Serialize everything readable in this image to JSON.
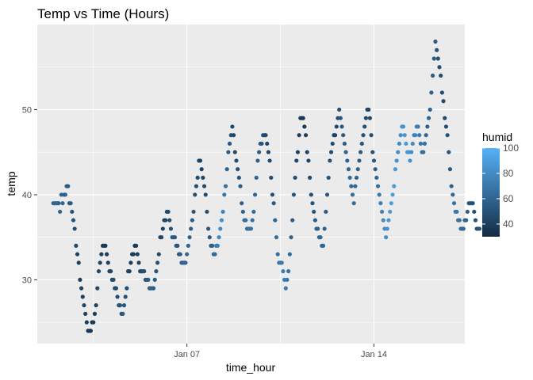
{
  "chart_data": {
    "type": "scatter",
    "title": "Temp vs Time (Hours)",
    "xlabel": "time_hour",
    "ylabel": "temp",
    "x_unit": "days since Jan 01",
    "xlim": [
      0.4,
      16.4
    ],
    "ylim": [
      22.5,
      60
    ],
    "x_ticks": [
      {
        "value": 6,
        "label": "Jan 07"
      },
      {
        "value": 13,
        "label": "Jan 14"
      }
    ],
    "x_minor_ticks": [
      2.5,
      9.5,
      16.5
    ],
    "y_ticks": [
      {
        "value": 30,
        "label": "30"
      },
      {
        "value": 40,
        "label": "40"
      },
      {
        "value": 50,
        "label": "50"
      }
    ],
    "y_minor_ticks": [
      25,
      35,
      45,
      55
    ],
    "grid": true,
    "panel_background": "#ebebeb",
    "grid_color": "#ffffff",
    "legend": {
      "title": "humid",
      "position": "right",
      "range": [
        30,
        100
      ],
      "ticks": [
        {
          "value": 40,
          "label": "40"
        },
        {
          "value": 60,
          "label": "60"
        },
        {
          "value": 80,
          "label": "80"
        },
        {
          "value": 100,
          "label": "100"
        }
      ],
      "low_color": "#132b43",
      "high_color": "#56b1f7"
    },
    "points": [
      [
        1.0,
        39,
        60
      ],
      [
        1.05,
        39,
        60
      ],
      [
        1.1,
        39,
        62
      ],
      [
        1.15,
        39,
        62
      ],
      [
        1.2,
        39,
        60
      ],
      [
        1.25,
        38,
        60
      ],
      [
        1.3,
        40,
        60
      ],
      [
        1.35,
        39,
        62
      ],
      [
        1.4,
        40,
        60
      ],
      [
        1.45,
        40,
        58
      ],
      [
        1.5,
        41,
        55
      ],
      [
        1.55,
        41,
        55
      ],
      [
        1.6,
        39,
        55
      ],
      [
        1.65,
        39,
        55
      ],
      [
        1.7,
        38,
        52
      ],
      [
        1.75,
        37,
        50
      ],
      [
        1.8,
        36,
        48
      ],
      [
        1.85,
        34,
        45
      ],
      [
        1.9,
        33,
        42
      ],
      [
        1.95,
        32,
        40
      ],
      [
        2.0,
        30,
        40
      ],
      [
        2.05,
        29,
        42
      ],
      [
        2.1,
        28,
        42
      ],
      [
        2.15,
        27,
        45
      ],
      [
        2.2,
        26,
        42
      ],
      [
        2.25,
        25,
        40
      ],
      [
        2.3,
        24,
        38
      ],
      [
        2.35,
        24,
        38
      ],
      [
        2.4,
        24,
        36
      ],
      [
        2.45,
        25,
        38
      ],
      [
        2.5,
        25,
        38
      ],
      [
        2.55,
        26,
        40
      ],
      [
        2.6,
        27,
        42
      ],
      [
        2.65,
        29,
        45
      ],
      [
        2.7,
        31,
        45
      ],
      [
        2.75,
        32,
        42
      ],
      [
        2.8,
        33,
        40
      ],
      [
        2.85,
        34,
        38
      ],
      [
        2.9,
        34,
        38
      ],
      [
        2.95,
        34,
        36
      ],
      [
        3.0,
        33,
        38
      ],
      [
        3.05,
        32,
        40
      ],
      [
        3.1,
        31,
        42
      ],
      [
        3.15,
        31,
        44
      ],
      [
        3.2,
        30,
        46
      ],
      [
        3.25,
        30,
        48
      ],
      [
        3.3,
        29,
        48
      ],
      [
        3.35,
        29,
        46
      ],
      [
        3.4,
        28,
        48
      ],
      [
        3.45,
        27,
        50
      ],
      [
        3.5,
        27,
        52
      ],
      [
        3.55,
        26,
        52
      ],
      [
        3.6,
        26,
        54
      ],
      [
        3.65,
        27,
        52
      ],
      [
        3.7,
        28,
        50
      ],
      [
        3.75,
        29,
        48
      ],
      [
        3.8,
        31,
        45
      ],
      [
        3.85,
        31,
        42
      ],
      [
        3.9,
        32,
        40
      ],
      [
        3.95,
        33,
        38
      ],
      [
        4.0,
        33,
        38
      ],
      [
        4.05,
        34,
        36
      ],
      [
        4.1,
        34,
        38
      ],
      [
        4.15,
        33,
        40
      ],
      [
        4.2,
        32,
        42
      ],
      [
        4.25,
        31,
        44
      ],
      [
        4.3,
        31,
        46
      ],
      [
        4.35,
        31,
        48
      ],
      [
        4.4,
        31,
        50
      ],
      [
        4.45,
        30,
        52
      ],
      [
        4.5,
        30,
        54
      ],
      [
        4.55,
        30,
        56
      ],
      [
        4.6,
        29,
        56
      ],
      [
        4.65,
        29,
        58
      ],
      [
        4.7,
        29,
        58
      ],
      [
        4.75,
        29,
        56
      ],
      [
        4.8,
        30,
        54
      ],
      [
        4.85,
        31,
        52
      ],
      [
        4.9,
        32,
        50
      ],
      [
        4.95,
        33,
        48
      ],
      [
        5.0,
        35,
        46
      ],
      [
        5.05,
        35,
        44
      ],
      [
        5.1,
        36,
        42
      ],
      [
        5.15,
        37,
        42
      ],
      [
        5.2,
        37,
        42
      ],
      [
        5.25,
        38,
        44
      ],
      [
        5.3,
        38,
        46
      ],
      [
        5.35,
        37,
        48
      ],
      [
        5.4,
        36,
        50
      ],
      [
        5.45,
        35,
        52
      ],
      [
        5.5,
        35,
        54
      ],
      [
        5.55,
        35,
        54
      ],
      [
        5.6,
        34,
        54
      ],
      [
        5.65,
        34,
        54
      ],
      [
        5.7,
        33,
        56
      ],
      [
        5.75,
        33,
        56
      ],
      [
        5.8,
        32,
        58
      ],
      [
        5.85,
        32,
        58
      ],
      [
        5.9,
        32,
        60
      ],
      [
        5.95,
        32,
        60
      ],
      [
        6.0,
        33,
        62
      ],
      [
        6.05,
        34,
        60
      ],
      [
        6.1,
        35,
        58
      ],
      [
        6.15,
        36,
        56
      ],
      [
        6.2,
        37,
        54
      ],
      [
        6.25,
        38,
        52
      ],
      [
        6.3,
        40,
        50
      ],
      [
        6.35,
        41,
        48
      ],
      [
        6.4,
        42,
        46
      ],
      [
        6.45,
        44,
        44
      ],
      [
        6.5,
        44,
        42
      ],
      [
        6.55,
        43,
        42
      ],
      [
        6.6,
        42,
        44
      ],
      [
        6.65,
        41,
        46
      ],
      [
        6.7,
        40,
        48
      ],
      [
        6.75,
        38,
        50
      ],
      [
        6.8,
        36,
        52
      ],
      [
        6.85,
        35,
        54
      ],
      [
        6.9,
        34,
        56
      ],
      [
        6.95,
        34,
        58
      ],
      [
        7.0,
        33,
        60
      ],
      [
        7.05,
        33,
        64
      ],
      [
        7.1,
        34,
        70
      ],
      [
        7.15,
        34,
        74
      ],
      [
        7.2,
        35,
        78
      ],
      [
        7.25,
        36,
        80
      ],
      [
        7.3,
        37,
        82
      ],
      [
        7.35,
        38,
        76
      ],
      [
        7.4,
        40,
        70
      ],
      [
        7.45,
        41,
        66
      ],
      [
        7.5,
        43,
        60
      ],
      [
        7.55,
        45,
        56
      ],
      [
        7.6,
        46,
        52
      ],
      [
        7.65,
        47,
        48
      ],
      [
        7.7,
        48,
        45
      ],
      [
        7.75,
        47,
        44
      ],
      [
        7.8,
        45,
        46
      ],
      [
        7.85,
        44,
        48
      ],
      [
        7.9,
        43,
        50
      ],
      [
        7.95,
        42,
        52
      ],
      [
        8.0,
        41,
        56
      ],
      [
        8.05,
        39,
        58
      ],
      [
        8.1,
        38,
        60
      ],
      [
        8.15,
        37,
        62
      ],
      [
        8.2,
        37,
        64
      ],
      [
        8.25,
        36,
        64
      ],
      [
        8.3,
        36,
        66
      ],
      [
        8.35,
        36,
        66
      ],
      [
        8.4,
        36,
        68
      ],
      [
        8.45,
        37,
        66
      ],
      [
        8.5,
        38,
        64
      ],
      [
        8.55,
        40,
        62
      ],
      [
        8.6,
        42,
        60
      ],
      [
        8.65,
        44,
        58
      ],
      [
        8.7,
        45,
        56
      ],
      [
        8.75,
        46,
        54
      ],
      [
        8.8,
        46,
        52
      ],
      [
        8.85,
        47,
        50
      ],
      [
        8.9,
        47,
        48
      ],
      [
        8.95,
        47,
        46
      ],
      [
        9.0,
        46,
        44
      ],
      [
        9.05,
        45,
        44
      ],
      [
        9.1,
        44,
        46
      ],
      [
        9.15,
        42,
        48
      ],
      [
        9.2,
        40,
        50
      ],
      [
        9.25,
        39,
        54
      ],
      [
        9.3,
        37,
        60
      ],
      [
        9.35,
        35,
        64
      ],
      [
        9.4,
        33,
        66
      ],
      [
        9.45,
        32,
        68
      ],
      [
        9.5,
        32,
        70
      ],
      [
        9.55,
        32,
        72
      ],
      [
        9.6,
        31,
        74
      ],
      [
        9.65,
        30,
        74
      ],
      [
        9.7,
        29,
        72
      ],
      [
        9.75,
        30,
        70
      ],
      [
        9.8,
        31,
        68
      ],
      [
        9.85,
        33,
        64
      ],
      [
        9.9,
        35,
        60
      ],
      [
        9.95,
        37,
        56
      ],
      [
        10.0,
        40,
        52
      ],
      [
        10.05,
        42,
        48
      ],
      [
        10.1,
        44,
        44
      ],
      [
        10.15,
        45,
        42
      ],
      [
        10.2,
        47,
        40
      ],
      [
        10.25,
        49,
        38
      ],
      [
        10.3,
        49,
        36
      ],
      [
        10.35,
        49,
        36
      ],
      [
        10.4,
        48,
        38
      ],
      [
        10.45,
        47,
        40
      ],
      [
        10.5,
        45,
        42
      ],
      [
        10.55,
        44,
        44
      ],
      [
        10.6,
        42,
        46
      ],
      [
        10.65,
        40,
        48
      ],
      [
        10.7,
        39,
        50
      ],
      [
        10.75,
        38,
        52
      ],
      [
        10.8,
        37,
        54
      ],
      [
        10.85,
        36,
        56
      ],
      [
        10.9,
        36,
        58
      ],
      [
        10.95,
        35,
        60
      ],
      [
        11.0,
        35,
        62
      ],
      [
        11.05,
        34,
        62
      ],
      [
        11.1,
        34,
        60
      ],
      [
        11.15,
        36,
        58
      ],
      [
        11.2,
        38,
        56
      ],
      [
        11.25,
        40,
        54
      ],
      [
        11.3,
        42,
        52
      ],
      [
        11.35,
        44,
        50
      ],
      [
        11.4,
        45,
        48
      ],
      [
        11.45,
        46,
        46
      ],
      [
        11.5,
        47,
        44
      ],
      [
        11.55,
        47,
        44
      ],
      [
        11.6,
        48,
        46
      ],
      [
        11.65,
        49,
        48
      ],
      [
        11.7,
        50,
        50
      ],
      [
        11.75,
        49,
        52
      ],
      [
        11.8,
        48,
        54
      ],
      [
        11.85,
        47,
        56
      ],
      [
        11.9,
        46,
        56
      ],
      [
        11.95,
        45,
        58
      ],
      [
        12.0,
        44,
        60
      ],
      [
        12.05,
        43,
        60
      ],
      [
        12.1,
        42,
        62
      ],
      [
        12.15,
        41,
        62
      ],
      [
        12.2,
        40,
        64
      ],
      [
        12.25,
        39,
        64
      ],
      [
        12.3,
        41,
        62
      ],
      [
        12.35,
        42,
        60
      ],
      [
        12.4,
        43,
        58
      ],
      [
        12.45,
        44,
        56
      ],
      [
        12.5,
        45,
        54
      ],
      [
        12.55,
        46,
        52
      ],
      [
        12.6,
        47,
        50
      ],
      [
        12.65,
        48,
        48
      ],
      [
        12.7,
        49,
        46
      ],
      [
        12.75,
        50,
        44
      ],
      [
        12.8,
        50,
        44
      ],
      [
        12.85,
        49,
        46
      ],
      [
        12.9,
        47,
        48
      ],
      [
        12.95,
        45,
        50
      ],
      [
        13.0,
        44,
        54
      ],
      [
        13.05,
        43,
        58
      ],
      [
        13.1,
        42,
        62
      ],
      [
        13.15,
        41,
        66
      ],
      [
        13.2,
        40,
        70
      ],
      [
        13.25,
        39,
        74
      ],
      [
        13.3,
        38,
        76
      ],
      [
        13.35,
        37,
        78
      ],
      [
        13.4,
        36,
        80
      ],
      [
        13.45,
        35,
        82
      ],
      [
        13.5,
        36,
        84
      ],
      [
        13.55,
        37,
        86
      ],
      [
        13.6,
        38,
        88
      ],
      [
        13.65,
        39,
        90
      ],
      [
        13.7,
        40,
        90
      ],
      [
        13.75,
        41,
        88
      ],
      [
        13.8,
        43,
        86
      ],
      [
        13.85,
        44,
        84
      ],
      [
        13.9,
        45,
        82
      ],
      [
        13.95,
        46,
        80
      ],
      [
        14.0,
        47,
        80
      ],
      [
        14.05,
        48,
        82
      ],
      [
        14.1,
        48,
        84
      ],
      [
        14.15,
        47,
        86
      ],
      [
        14.2,
        46,
        88
      ],
      [
        14.25,
        45,
        88
      ],
      [
        14.3,
        45,
        86
      ],
      [
        14.35,
        44,
        84
      ],
      [
        14.4,
        45,
        82
      ],
      [
        14.45,
        46,
        80
      ],
      [
        14.5,
        47,
        78
      ],
      [
        14.55,
        47,
        76
      ],
      [
        14.6,
        48,
        74
      ],
      [
        14.65,
        48,
        72
      ],
      [
        14.7,
        47,
        70
      ],
      [
        14.75,
        46,
        68
      ],
      [
        14.8,
        45,
        66
      ],
      [
        14.85,
        45,
        66
      ],
      [
        14.9,
        46,
        64
      ],
      [
        14.95,
        47,
        62
      ],
      [
        15.0,
        48,
        60
      ],
      [
        15.05,
        49,
        60
      ],
      [
        15.1,
        50,
        58
      ],
      [
        15.15,
        52,
        58
      ],
      [
        15.2,
        54,
        56
      ],
      [
        15.25,
        56,
        55
      ],
      [
        15.3,
        58,
        54
      ],
      [
        15.35,
        57,
        52
      ],
      [
        15.4,
        56,
        50
      ],
      [
        15.45,
        55,
        50
      ],
      [
        15.5,
        54,
        48
      ],
      [
        15.55,
        52,
        48
      ],
      [
        15.6,
        51,
        46
      ],
      [
        15.65,
        49,
        46
      ],
      [
        15.7,
        48,
        48
      ],
      [
        15.75,
        47,
        50
      ],
      [
        15.8,
        45,
        52
      ],
      [
        15.85,
        43,
        54
      ],
      [
        15.9,
        41,
        58
      ],
      [
        15.95,
        40,
        62
      ],
      [
        16.0,
        39,
        66
      ],
      [
        16.05,
        38,
        70
      ],
      [
        16.1,
        38,
        70
      ],
      [
        16.15,
        37,
        68
      ],
      [
        16.2,
        37,
        66
      ],
      [
        16.25,
        36,
        66
      ],
      [
        16.3,
        36,
        64
      ],
      [
        16.35,
        36,
        62
      ],
      [
        16.4,
        37,
        60
      ],
      [
        16.45,
        37,
        58
      ],
      [
        16.5,
        38,
        56
      ],
      [
        16.55,
        39,
        54
      ],
      [
        16.6,
        39,
        52
      ],
      [
        16.65,
        39,
        50
      ],
      [
        16.7,
        39,
        50
      ],
      [
        16.75,
        38,
        50
      ],
      [
        16.8,
        37,
        48
      ],
      [
        16.85,
        36,
        48
      ],
      [
        16.9,
        36,
        50
      ],
      [
        16.95,
        36,
        52
      ]
    ]
  }
}
